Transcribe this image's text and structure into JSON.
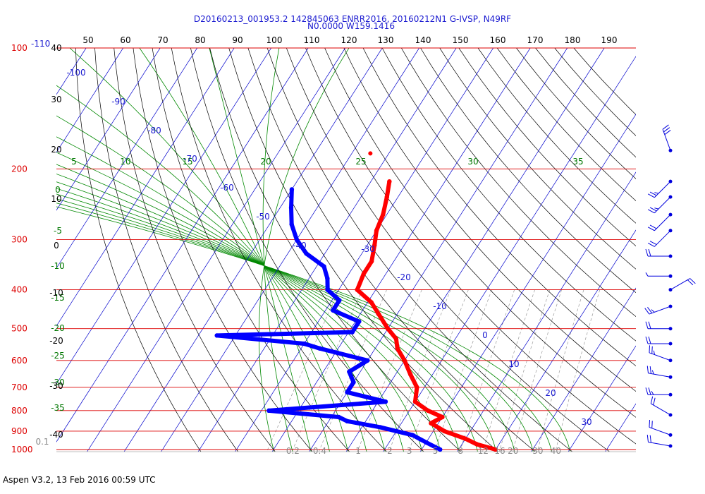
{
  "header": {
    "line1": "D20160213_001953.2 142845063 ENRR2016, 20160212N1 G-IVSP, N49RF",
    "line2": "N0.0000 W159.1416"
  },
  "footer": "Aspen V3.2, 13 Feb 2016  00:59 UTC",
  "colors": {
    "isobar": "#dd0000",
    "isotherm": "#0000cc",
    "dry_adiabat": "#000000",
    "moist_adiabat": "#008800",
    "mixing_ratio": "#999999",
    "temperature": "#ff0000",
    "dewpoint": "#0000ff",
    "wind_barb": "#0000dd"
  },
  "chart_data": {
    "type": "skew-t",
    "pressure_labels": [
      "100",
      "200",
      "300",
      "400",
      "500",
      "600",
      "700",
      "800",
      "900",
      "1000"
    ],
    "pressure_levels_hpa": [
      100,
      200,
      300,
      400,
      500,
      600,
      700,
      800,
      900,
      1000
    ],
    "ylim_hpa": [
      100,
      1000
    ],
    "y_scale": "log",
    "top_left_labels": {
      "pressure": "100",
      "isotherm": "-110"
    },
    "top_scale_labels": [
      "50",
      "60",
      "70",
      "80",
      "90",
      "100",
      "110",
      "120",
      "130",
      "140",
      "150",
      "160",
      "170",
      "180",
      "190"
    ],
    "left_black_labels": [
      "40",
      "30",
      "20",
      "10",
      "0",
      "-10",
      "-20",
      "-30",
      "-40"
    ],
    "left_green_labels": [
      "0",
      "-5",
      "-10",
      "-15",
      "-20",
      "-25",
      "-30",
      "-35"
    ],
    "isotherm_labels": [
      "-100",
      "-90",
      "-80",
      "-70",
      "-60",
      "-50",
      "-40",
      "-30",
      "-20",
      "-10",
      "0",
      "10",
      "20",
      "30"
    ],
    "isotherm_values_c": [
      -100,
      -90,
      -80,
      -70,
      -60,
      -50,
      -40,
      -30,
      -20,
      -10,
      0,
      10,
      20,
      30
    ],
    "moist_adiabat_labels": [
      "5",
      "10",
      "15",
      "20",
      "25",
      "30",
      "35"
    ],
    "mixing_ratio_labels": [
      "0.1",
      "0.2",
      "0.4",
      "1",
      "2",
      "3",
      "5",
      "8",
      "12",
      "16",
      "20",
      "30",
      "40"
    ],
    "temperature_profile": {
      "name": "Temperature",
      "pressure_hpa": [
        215,
        235,
        260,
        285,
        310,
        340,
        365,
        400,
        430,
        460,
        500,
        530,
        560,
        600,
        650,
        700,
        760,
        800,
        830,
        860,
        900,
        940,
        970,
        1000
      ],
      "temp_c": [
        -55,
        -53,
        -51,
        -50,
        -48,
        -46,
        -46,
        -45,
        -39,
        -35,
        -30,
        -26,
        -24,
        -20,
        -16,
        -12,
        -10,
        -5,
        0,
        -2,
        3,
        10,
        14,
        20
      ]
    },
    "dewpoint_profile": {
      "name": "Dewpoint",
      "pressure_hpa": [
        225,
        250,
        275,
        300,
        325,
        350,
        375,
        400,
        425,
        450,
        480,
        510,
        520,
        545,
        560,
        600,
        640,
        680,
        720,
        760,
        800,
        830,
        850,
        880,
        920,
        960,
        1000
      ],
      "temp_c": [
        -80,
        -77,
        -74,
        -70,
        -65,
        -58,
        -55,
        -53,
        -48,
        -48,
        -39,
        -39,
        -75,
        -50,
        -45,
        -30,
        -33,
        -30,
        -30,
        -18,
        -48,
        -28,
        -25,
        -15,
        -5,
        0,
        5
      ]
    },
    "isolated_temperature_point": {
      "pressure_hpa": 183,
      "temp_c": -65
    },
    "wind_barbs": [
      {
        "pressure_hpa": 180,
        "direction_deg": 340,
        "speed_kt": 30
      },
      {
        "pressure_hpa": 215,
        "direction_deg": 225,
        "speed_kt": 25
      },
      {
        "pressure_hpa": 235,
        "direction_deg": 225,
        "speed_kt": 25
      },
      {
        "pressure_hpa": 260,
        "direction_deg": 225,
        "speed_kt": 20
      },
      {
        "pressure_hpa": 285,
        "direction_deg": 225,
        "speed_kt": 20
      },
      {
        "pressure_hpa": 330,
        "direction_deg": 270,
        "speed_kt": 20
      },
      {
        "pressure_hpa": 370,
        "direction_deg": 270,
        "speed_kt": 5
      },
      {
        "pressure_hpa": 400,
        "direction_deg": 60,
        "speed_kt": 20
      },
      {
        "pressure_hpa": 440,
        "direction_deg": 250,
        "speed_kt": 25
      },
      {
        "pressure_hpa": 500,
        "direction_deg": 270,
        "speed_kt": 20
      },
      {
        "pressure_hpa": 545,
        "direction_deg": 270,
        "speed_kt": 20
      },
      {
        "pressure_hpa": 600,
        "direction_deg": 290,
        "speed_kt": 25
      },
      {
        "pressure_hpa": 660,
        "direction_deg": 280,
        "speed_kt": 25
      },
      {
        "pressure_hpa": 730,
        "direction_deg": 270,
        "speed_kt": 25
      },
      {
        "pressure_hpa": 820,
        "direction_deg": 300,
        "speed_kt": 20
      },
      {
        "pressure_hpa": 920,
        "direction_deg": 290,
        "speed_kt": 20
      },
      {
        "pressure_hpa": 980,
        "direction_deg": 280,
        "speed_kt": 20
      }
    ]
  }
}
